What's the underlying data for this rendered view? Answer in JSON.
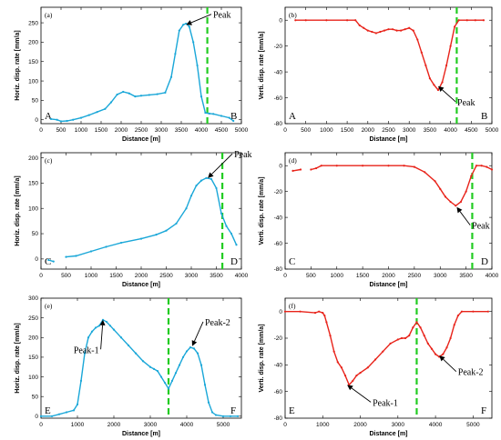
{
  "figure": {
    "panels": [
      {
        "label": "(a)",
        "left_end": "A",
        "right_end": "B",
        "xlabel": "Distance [m]",
        "ylabel": "Horiz. disp. rate [mm/a]",
        "color": "#1aa7d8",
        "xticks": [
          0,
          500,
          1000,
          1500,
          2000,
          2500,
          3000,
          3500,
          4000,
          4500,
          5000
        ],
        "yticks": [
          0,
          50,
          100,
          150,
          200,
          250
        ],
        "annotations": [
          {
            "text": "Peak",
            "x": 3620,
            "y": 245,
            "tx": 4250,
            "ty": 272
          }
        ]
      },
      {
        "label": "(b)",
        "left_end": "A",
        "right_end": "B",
        "xlabel": "Distance [m]",
        "ylabel": "Verti. disp. rate [mm/a]",
        "color": "#e8231a",
        "xticks": [
          0,
          500,
          1000,
          1500,
          2000,
          2500,
          3000,
          3500,
          4000,
          4500,
          5000
        ],
        "yticks": [
          -80,
          -60,
          -40,
          -20,
          0
        ],
        "annotations": [
          {
            "text": "Peak",
            "x": 3700,
            "y": -51,
            "tx": 4120,
            "ty": -63
          }
        ]
      },
      {
        "label": "(c)",
        "left_end": "C",
        "right_end": "D",
        "xlabel": "Distance [m]",
        "ylabel": "Horiz. disp. rate [mm/a]",
        "color": "#1aa7d8",
        "xticks": [
          0,
          500,
          1000,
          1500,
          2000,
          2500,
          3000,
          3500,
          4000
        ],
        "yticks": [
          0,
          50,
          100,
          150,
          200
        ],
        "annotations": [
          {
            "text": "Peak",
            "x": 3330,
            "y": 160,
            "tx": 3820,
            "ty": 208
          }
        ]
      },
      {
        "label": "(d)",
        "left_end": "C",
        "right_end": "D",
        "xlabel": "Distance [m]",
        "ylabel": "Verti. disp. rate [mm/a]",
        "color": "#e8231a",
        "xticks": [
          0,
          500,
          1000,
          1500,
          2000,
          2500,
          3000,
          3500,
          4000
        ],
        "yticks": [
          -80,
          -60,
          -40,
          -20,
          0
        ],
        "annotations": [
          {
            "text": "Peak",
            "x": 3320,
            "y": -32,
            "tx": 3580,
            "ty": -46
          }
        ]
      },
      {
        "label": "(e)",
        "left_end": "E",
        "right_end": "F",
        "xlabel": "Distance [m]",
        "ylabel": "Horiz. disp. rate [mm/a]",
        "color": "#1aa7d8",
        "xticks": [
          0,
          1000,
          2000,
          3000,
          4000,
          5000
        ],
        "yticks": [
          0,
          50,
          100,
          150,
          200,
          250,
          300
        ],
        "annotations": [
          {
            "text": "Peak-1",
            "x": 1700,
            "y": 245,
            "tx": 1640,
            "ty": 170
          },
          {
            "text": "Peak-2",
            "x": 4150,
            "y": 178,
            "tx": 4450,
            "ty": 240
          }
        ]
      },
      {
        "label": "(f)",
        "left_end": "E",
        "right_end": "F",
        "xlabel": "Distance [m]",
        "ylabel": "Verti. disp. rate [mm/a]",
        "color": "#e8231a",
        "xticks": [
          0,
          1000,
          2000,
          3000,
          4000,
          5000
        ],
        "yticks": [
          -80,
          -60,
          -40,
          -20,
          0
        ],
        "annotations": [
          {
            "text": "Peak-1",
            "x": 1650,
            "y": -55,
            "tx": 2280,
            "ty": -68
          },
          {
            "text": "Peak-2",
            "x": 4100,
            "y": -33,
            "tx": 4550,
            "ty": -45
          }
        ]
      }
    ]
  },
  "chart_data": [
    {
      "type": "line",
      "title": "(a)",
      "xlabel": "Distance [m]",
      "ylabel": "Horiz. disp. rate [mm/a]",
      "xlim": [
        0,
        5000
      ],
      "ylim": [
        -10,
        290
      ],
      "peak_marker_x": 4150,
      "series": [
        {
          "x": [
            250,
            400,
            500,
            650,
            800,
            1000,
            1200,
            1400,
            1600,
            1750,
            1900,
            2050,
            2200,
            2350,
            2500,
            2700,
            2900,
            3100,
            3250,
            3350,
            3450,
            3550,
            3620,
            3700,
            3800,
            3900,
            4000,
            4100,
            4200,
            4300,
            4500,
            4700,
            4800
          ],
          "y": [
            2,
            0,
            -4,
            -3,
            0,
            5,
            12,
            20,
            28,
            45,
            65,
            72,
            68,
            60,
            62,
            64,
            66,
            70,
            110,
            170,
            230,
            245,
            248,
            240,
            200,
            140,
            60,
            18,
            16,
            15,
            10,
            5,
            -3
          ]
        }
      ]
    },
    {
      "type": "line",
      "title": "(b)",
      "xlabel": "Distance [m]",
      "ylabel": "Verti. disp. rate [mm/a]",
      "xlim": [
        0,
        5000
      ],
      "ylim": [
        -80,
        10
      ],
      "peak_marker_x": 4150,
      "series": [
        {
          "x": [
            250,
            500,
            1000,
            1500,
            1700,
            1800,
            1900,
            2000,
            2100,
            2200,
            2300,
            2400,
            2500,
            2600,
            2700,
            2800,
            2900,
            3000,
            3100,
            3200,
            3300,
            3400,
            3500,
            3600,
            3700,
            3800,
            3900,
            4000,
            4100,
            4200,
            4400,
            4600,
            4800
          ],
          "y": [
            0,
            0,
            0,
            0,
            0,
            -4,
            -6,
            -8,
            -9,
            -10,
            -9,
            -8,
            -7,
            -7,
            -8,
            -8,
            -7,
            -6,
            -8,
            -15,
            -25,
            -35,
            -45,
            -50,
            -54,
            -48,
            -35,
            -20,
            -5,
            0,
            0,
            0,
            0
          ]
        }
      ]
    },
    {
      "type": "line",
      "title": "(c)",
      "xlabel": "Distance [m]",
      "ylabel": "Horiz. disp. rate [mm/a]",
      "xlim": [
        0,
        4000
      ],
      "ylim": [
        -20,
        210
      ],
      "peak_marker_x": 3620,
      "series": [
        {
          "x": [
            150,
            250
          ],
          "y": [
            -2,
            -5
          ]
        },
        {
          "x": [
            500,
            700,
            1000,
            1300,
            1600,
            2000,
            2300,
            2500,
            2700,
            2900,
            3000,
            3100,
            3200,
            3300,
            3400,
            3500,
            3600,
            3700,
            3800,
            3900
          ],
          "y": [
            4,
            6,
            15,
            24,
            32,
            40,
            48,
            56,
            70,
            100,
            125,
            145,
            155,
            160,
            158,
            140,
            90,
            65,
            50,
            28
          ]
        }
      ]
    },
    {
      "type": "line",
      "title": "(d)",
      "xlabel": "Distance [m]",
      "ylabel": "Verti. disp. rate [mm/a]",
      "xlim": [
        0,
        4000
      ],
      "ylim": [
        -80,
        10
      ],
      "peak_marker_x": 3620,
      "series": [
        {
          "x": [
            150,
            300
          ],
          "y": [
            -4,
            -3
          ]
        },
        {
          "x": [
            500,
            600,
            700,
            1000,
            1500,
            2000,
            2300,
            2500,
            2700,
            2900,
            3000,
            3100,
            3200,
            3300,
            3400,
            3500,
            3600,
            3700,
            3800,
            3900,
            4000
          ],
          "y": [
            -3,
            -2,
            0,
            0,
            0,
            0,
            0,
            -1,
            -5,
            -12,
            -18,
            -24,
            -28,
            -31,
            -28,
            -20,
            -8,
            0,
            0,
            -1,
            -3
          ]
        }
      ]
    },
    {
      "type": "line",
      "title": "(e)",
      "xlabel": "Distance [m]",
      "ylabel": "Horiz. disp. rate [mm/a]",
      "xlim": [
        0,
        5500
      ],
      "ylim": [
        -5,
        300
      ],
      "peak_marker_x": 3500,
      "series": [
        {
          "x": [
            0,
            300,
            500,
            700,
            900,
            1000,
            1100,
            1200,
            1300,
            1400,
            1500,
            1600,
            1700,
            1800,
            1900,
            2000,
            2200,
            2400,
            2600,
            2800,
            3000,
            3100,
            3200,
            3300,
            3400,
            3500,
            3600,
            3700,
            3800,
            3900,
            4000,
            4100,
            4200,
            4300,
            4400,
            4500,
            4600,
            4700,
            4800,
            5000,
            5200,
            5400
          ],
          "y": [
            0,
            0,
            5,
            10,
            15,
            30,
            90,
            160,
            200,
            215,
            225,
            230,
            245,
            240,
            230,
            220,
            200,
            180,
            160,
            140,
            125,
            120,
            115,
            100,
            85,
            70,
            90,
            110,
            130,
            150,
            165,
            175,
            172,
            160,
            130,
            80,
            35,
            10,
            3,
            0,
            0,
            0
          ]
        }
      ]
    },
    {
      "type": "line",
      "title": "(f)",
      "xlabel": "Distance [m]",
      "ylabel": "Verti. disp. rate [mm/a]",
      "xlim": [
        0,
        5500
      ],
      "ylim": [
        -80,
        10
      ],
      "peak_marker_x": 3500,
      "series": [
        {
          "x": [
            0,
            400,
            800,
            900,
            1000,
            1050,
            1100,
            1200,
            1300,
            1400,
            1500,
            1600,
            1700,
            1800,
            1900,
            2000,
            2200,
            2400,
            2600,
            2800,
            3000,
            3100,
            3200,
            3300,
            3400,
            3500,
            3600,
            3700,
            3800,
            3900,
            4000,
            4100,
            4200,
            4300,
            4400,
            4500,
            4600,
            4700,
            5000,
            5400
          ],
          "y": [
            0,
            0,
            -1,
            0,
            -1,
            -3,
            -8,
            -18,
            -30,
            -38,
            -42,
            -48,
            -55,
            -52,
            -48,
            -46,
            -42,
            -36,
            -30,
            -24,
            -21,
            -20,
            -20,
            -18,
            -12,
            -8,
            -12,
            -18,
            -24,
            -28,
            -32,
            -34,
            -32,
            -27,
            -20,
            -10,
            -3,
            0,
            0,
            0
          ]
        }
      ]
    }
  ]
}
